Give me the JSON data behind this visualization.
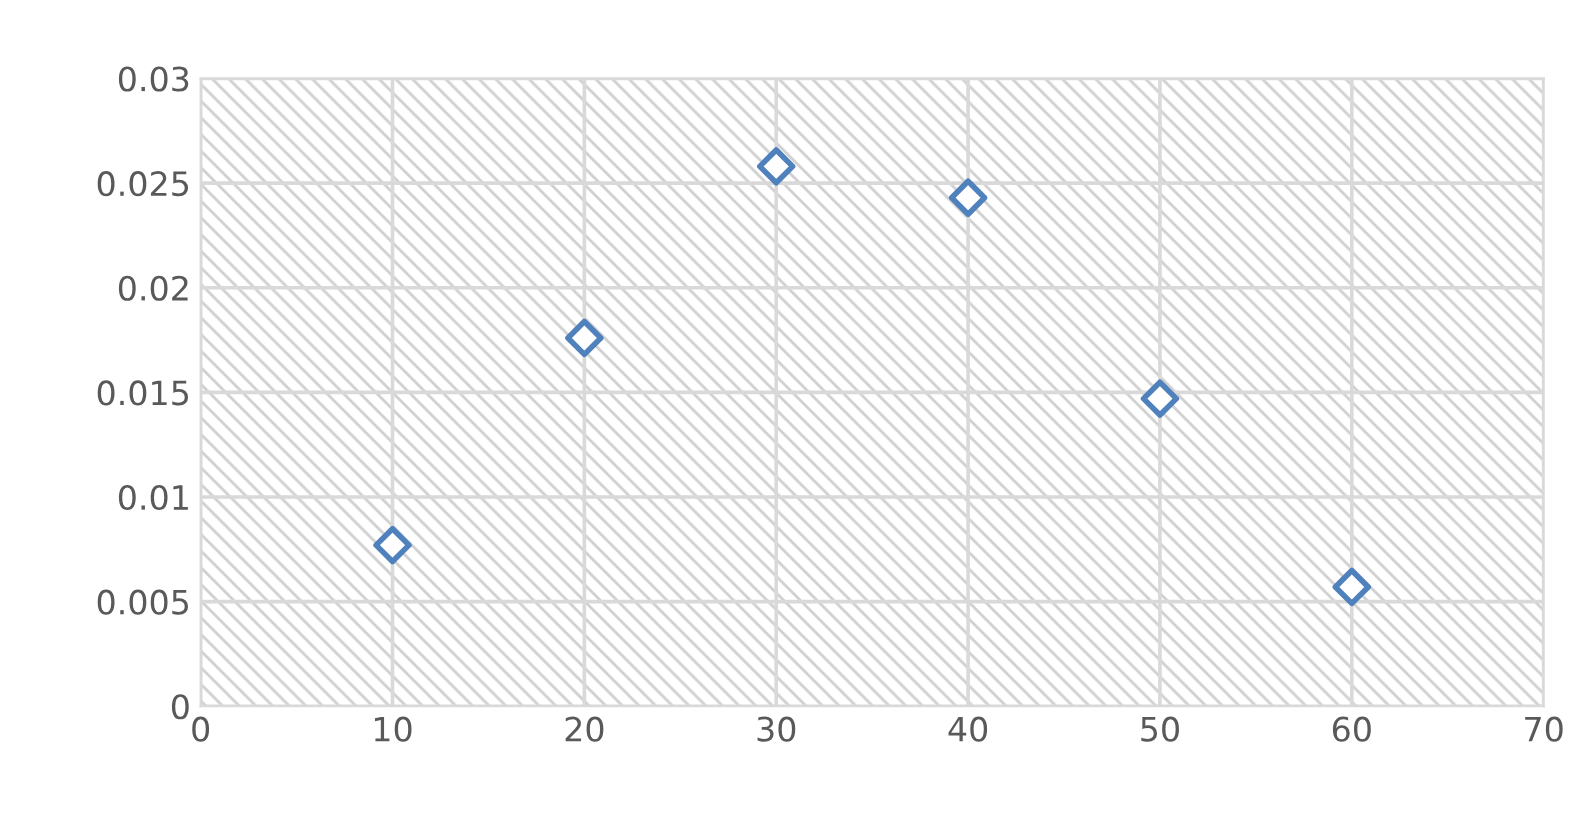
{
  "chart_data": {
    "type": "scatter",
    "x": [
      10,
      20,
      30,
      40,
      50,
      60
    ],
    "series": [
      {
        "color": "#4f81bd",
        "values": [
          0.0077,
          0.0176,
          0.0258,
          0.0243,
          0.0147,
          0.0057
        ]
      }
    ],
    "xlim": [
      0,
      70
    ],
    "xticks": [
      0,
      10,
      20,
      30,
      40,
      50,
      60,
      70
    ],
    "ylim": [
      0,
      0.03
    ],
    "yticks": [
      0,
      0.005,
      0.01,
      0.015,
      0.02,
      0.025,
      0.03
    ],
    "grid": true,
    "marker": "diamond"
  }
}
